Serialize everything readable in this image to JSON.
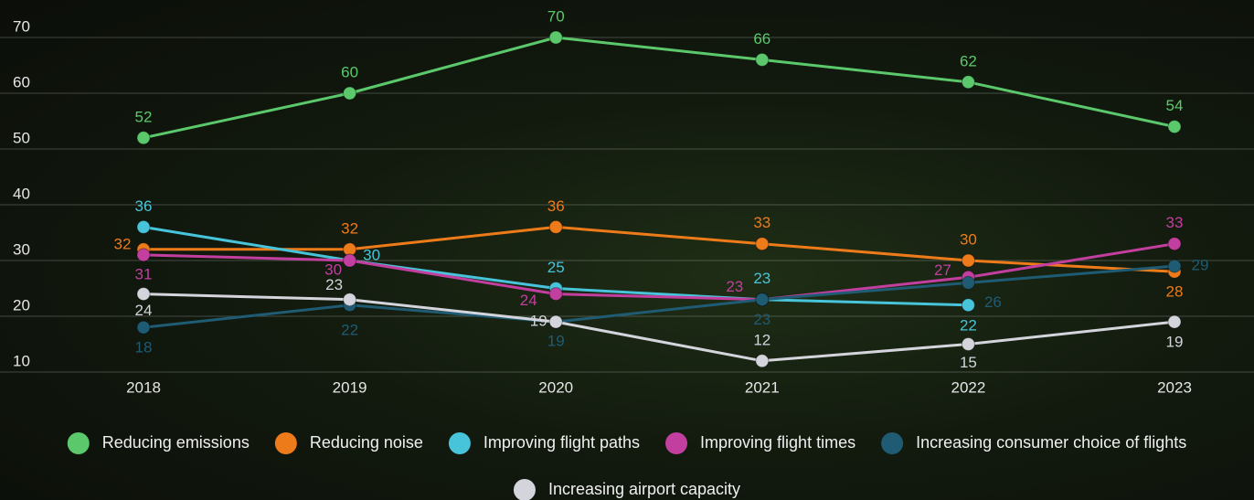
{
  "chart_data": {
    "type": "line",
    "categories": [
      "2018",
      "2019",
      "2020",
      "2021",
      "2022",
      "2023"
    ],
    "series": [
      {
        "name": "Reducing emissions",
        "color": "#5bc96b",
        "values": [
          52,
          60,
          70,
          66,
          62,
          54
        ]
      },
      {
        "name": "Reducing noise",
        "color": "#ee7b1a",
        "values": [
          32,
          32,
          36,
          33,
          30,
          28
        ]
      },
      {
        "name": "Improving flight paths",
        "color": "#48c4da",
        "values": [
          36,
          30,
          25,
          23,
          22,
          null
        ]
      },
      {
        "name": "Improving flight times",
        "color": "#c23f9f",
        "values": [
          31,
          30,
          24,
          23,
          27,
          33
        ]
      },
      {
        "name": "Increasing consumer choice of flights",
        "color": "#1f5b73",
        "values": [
          18,
          22,
          19,
          23,
          26,
          29
        ]
      },
      {
        "name": "Increasing airport capacity",
        "color": "#d4d4dc",
        "values": [
          24,
          23,
          19,
          12,
          15,
          19
        ]
      }
    ],
    "ylim": [
      10,
      70
    ],
    "yticks": [
      10,
      20,
      30,
      40,
      50,
      60,
      70
    ],
    "grid": true,
    "legend": "bottom"
  }
}
